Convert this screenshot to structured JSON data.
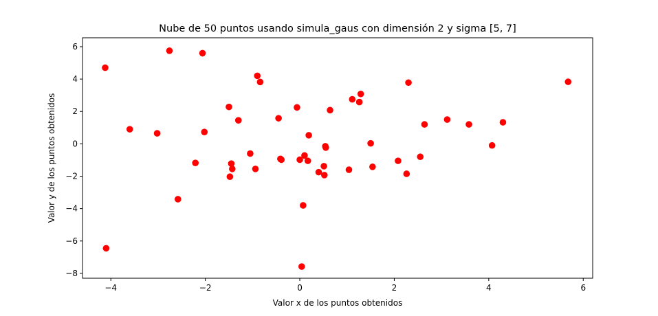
{
  "chart_data": {
    "type": "scatter",
    "title": "Nube de 50 puntos usando simula_gaus con dimensión 2 y sigma [5, 7]",
    "xlabel": "Valor x de los puntos obtenidos",
    "ylabel": "Valor y de los puntos obtenidos",
    "xlim": [
      -4.6,
      6.2
    ],
    "ylim": [
      -8.3,
      6.55
    ],
    "xticks": [
      -4,
      -2,
      0,
      2,
      4,
      6
    ],
    "yticks": [
      -8,
      -6,
      -4,
      -2,
      0,
      2,
      4,
      6
    ],
    "grid": false,
    "marker_color": "#ff0000",
    "points": [
      [
        -4.12,
        4.7
      ],
      [
        -2.76,
        5.75
      ],
      [
        -2.06,
        5.6
      ],
      [
        -4.1,
        -6.45
      ],
      [
        -3.6,
        0.9
      ],
      [
        -3.02,
        0.65
      ],
      [
        -2.02,
        0.73
      ],
      [
        -2.21,
        -1.18
      ],
      [
        -2.58,
        -3.42
      ],
      [
        -1.5,
        2.28
      ],
      [
        -1.3,
        1.45
      ],
      [
        -1.45,
        -1.22
      ],
      [
        -1.43,
        -1.55
      ],
      [
        -1.48,
        -2.03
      ],
      [
        -1.05,
        -0.6
      ],
      [
        -0.9,
        4.2
      ],
      [
        -0.84,
        3.82
      ],
      [
        -0.94,
        -1.55
      ],
      [
        -0.45,
        1.58
      ],
      [
        -0.41,
        -0.93
      ],
      [
        -0.39,
        -0.98
      ],
      [
        -0.06,
        2.25
      ],
      [
        0.0,
        -0.98
      ],
      [
        0.1,
        -0.72
      ],
      [
        0.17,
        -1.05
      ],
      [
        0.19,
        0.53
      ],
      [
        0.07,
        -3.8
      ],
      [
        0.04,
        -7.58
      ],
      [
        0.4,
        -1.75
      ],
      [
        0.51,
        -1.38
      ],
      [
        0.52,
        -1.93
      ],
      [
        0.54,
        -0.15
      ],
      [
        0.55,
        -0.23
      ],
      [
        0.64,
        2.08
      ],
      [
        1.04,
        -1.6
      ],
      [
        1.11,
        2.75
      ],
      [
        1.26,
        2.58
      ],
      [
        1.29,
        3.08
      ],
      [
        1.5,
        0.03
      ],
      [
        1.54,
        -1.42
      ],
      [
        2.08,
        -1.05
      ],
      [
        2.26,
        -1.85
      ],
      [
        2.3,
        3.78
      ],
      [
        2.55,
        -0.8
      ],
      [
        2.64,
        1.2
      ],
      [
        3.12,
        1.5
      ],
      [
        3.58,
        1.2
      ],
      [
        4.07,
        -0.1
      ],
      [
        4.3,
        1.33
      ],
      [
        5.68,
        3.83
      ]
    ]
  }
}
